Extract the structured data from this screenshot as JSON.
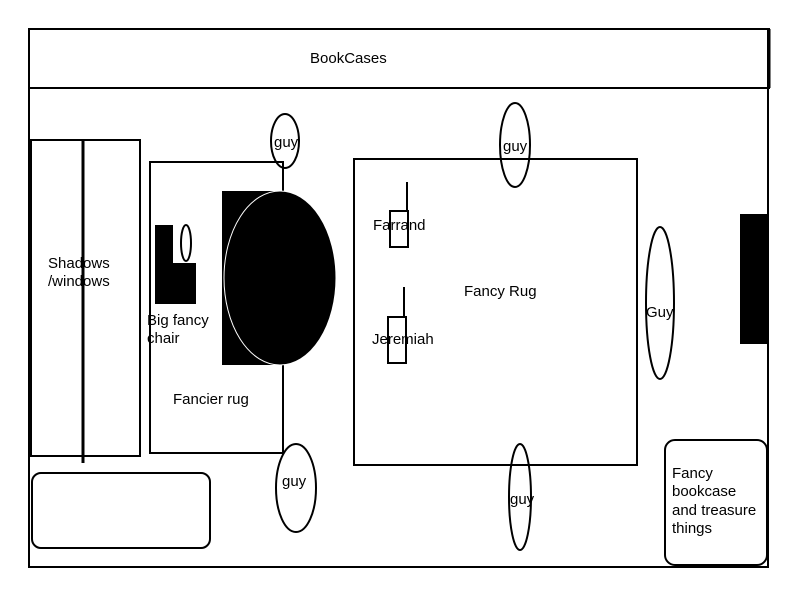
{
  "bookcases": "BookCases",
  "shadows_line1": "Shadows",
  "shadows_line2": "/windows",
  "chair_line1": "Big fancy",
  "chair_line2": "chair",
  "fancier_rug": "Fancier rug",
  "fancy_rug": "Fancy Rug",
  "farrand": "Farrand",
  "jeremiah": "Jeremiah",
  "guy_lower": "guy",
  "guy_upper": "Guy",
  "bookcase_line1": "Fancy",
  "bookcase_line2": "bookcase",
  "bookcase_line3": "and treasure",
  "bookcase_line4": "things"
}
